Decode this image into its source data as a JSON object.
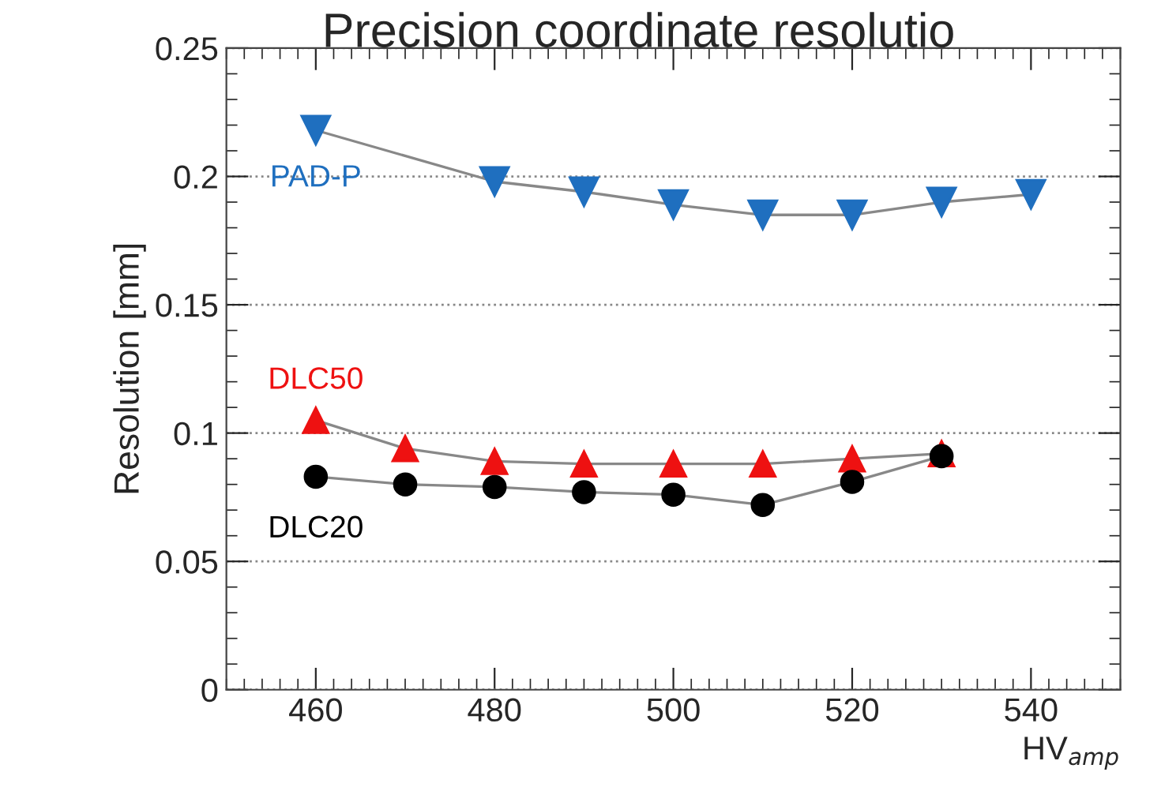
{
  "chart_data": {
    "type": "line",
    "title": "Precision coordinate resolutio",
    "xlabel": "HV$_{amp}$",
    "ylabel": "Resolution [mm]",
    "xlim": [
      450,
      550
    ],
    "xticks": [
      460,
      480,
      500,
      520,
      540
    ],
    "ylim": [
      0,
      0.25
    ],
    "yticks": [
      0,
      0.05,
      0.1,
      0.15,
      0.2,
      0.25
    ],
    "grid": "y",
    "legend": false,
    "series": [
      {
        "name": "PAD-P",
        "color": "#1f6fbf",
        "marker": "triangle_down",
        "x": [
          460,
          480,
          490,
          500,
          510,
          520,
          530,
          540
        ],
        "values": [
          0.218,
          0.198,
          0.194,
          0.189,
          0.185,
          0.185,
          0.19,
          0.193
        ]
      },
      {
        "name": "DLC50",
        "color": "#ee1111",
        "marker": "triangle",
        "x": [
          460,
          470,
          480,
          490,
          500,
          510,
          520,
          530
        ],
        "values": [
          0.105,
          0.094,
          0.089,
          0.088,
          0.088,
          0.088,
          0.09,
          0.092
        ]
      },
      {
        "name": "DLC20",
        "color": "#000000",
        "marker": "circle",
        "x": [
          460,
          470,
          480,
          490,
          500,
          510,
          520,
          530
        ],
        "values": [
          0.083,
          0.08,
          0.079,
          0.077,
          0.076,
          0.072,
          0.081,
          0.091
        ]
      }
    ]
  }
}
